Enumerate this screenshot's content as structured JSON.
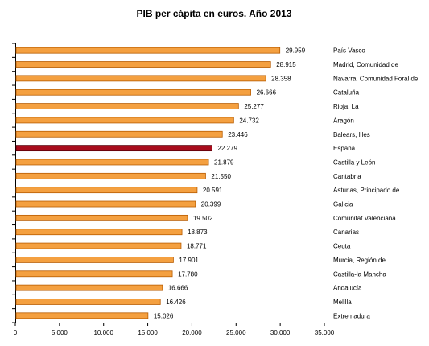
{
  "chart_data": {
    "type": "bar",
    "orientation": "horizontal",
    "title": "PIB per cápita en euros. Año 2013",
    "xlabel": "",
    "ylabel": "",
    "xlim": [
      0,
      35000
    ],
    "x_ticks": [
      0,
      5000,
      10000,
      15000,
      20000,
      25000,
      30000,
      35000
    ],
    "x_tick_labels": [
      "0",
      "5.000",
      "10.000",
      "15.000",
      "20.000",
      "25.000",
      "30.000",
      "35.000"
    ],
    "grid": false,
    "legend": "none",
    "categories": [
      "País Vasco",
      "Madrid, Comunidad de",
      "Navarra, Comunidad Foral de",
      "Cataluña",
      "Rioja, La",
      "Aragón",
      "Balears, Illes",
      "España",
      "Castilla y León",
      "Cantabria",
      "Asturias, Principado de",
      "Galicia",
      "Comunitat Valenciana",
      "Canarias",
      "Ceuta",
      "Murcia, Región de",
      "Castilla-la Mancha",
      "Andalucía",
      "Melilla",
      "Extremadura"
    ],
    "values": [
      29959,
      28915,
      28358,
      26666,
      25277,
      24732,
      23446,
      22279,
      21879,
      21550,
      20591,
      20399,
      19502,
      18873,
      18771,
      17901,
      17780,
      16666,
      16426,
      15026
    ],
    "value_labels": [
      "29.959",
      "28.915",
      "28.358",
      "26.666",
      "25.277",
      "24.732",
      "23.446",
      "22.279",
      "21.879",
      "21.550",
      "20.591",
      "20.399",
      "19.502",
      "18.873",
      "18.771",
      "17.901",
      "17.780",
      "16.666",
      "16.426",
      "15.026"
    ],
    "bar_color": "#f4a040",
    "bar_edge_color": "#b85c00",
    "highlight_category": "España",
    "highlight_color": "#a80c1c",
    "highlight_edge_color": "#5a0008"
  }
}
